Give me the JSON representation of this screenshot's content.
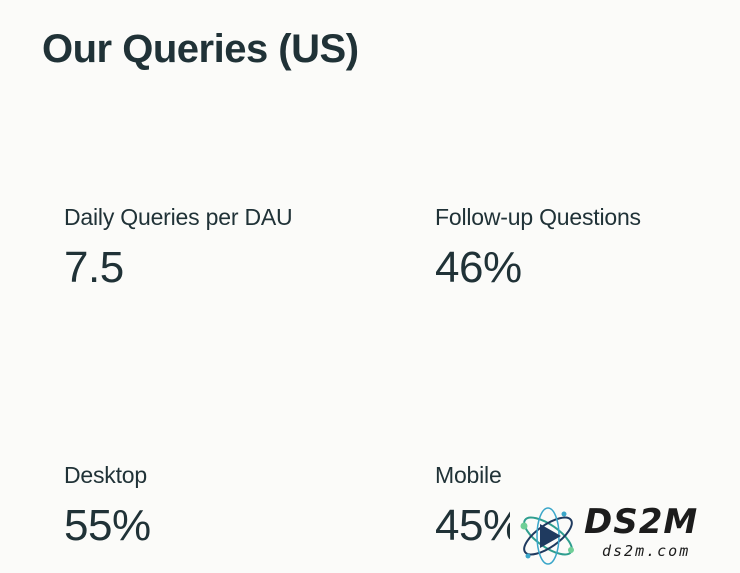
{
  "header": {
    "title": "Our Queries (US)"
  },
  "metrics": [
    {
      "label": "Daily Queries per DAU",
      "value": "7.5"
    },
    {
      "label": "Follow-up Questions",
      "value": "46%"
    },
    {
      "label": "Desktop",
      "value": "55%"
    },
    {
      "label": "Mobile",
      "value": "45%"
    }
  ],
  "watermark": {
    "brand": "DS2M",
    "domain": "ds2m.com"
  },
  "colors": {
    "background": "#fbfbf9",
    "text": "#203237",
    "watermark_accent": "#2f9e8f"
  }
}
